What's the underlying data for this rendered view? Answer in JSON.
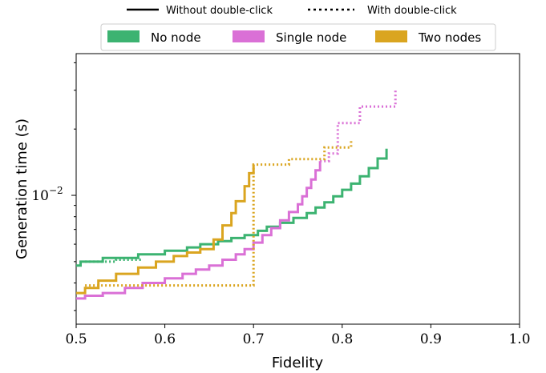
{
  "chart_data": {
    "type": "line",
    "title": "",
    "xlabel": "Fidelity",
    "ylabel": "Generation time (s)",
    "xlim": [
      0.5,
      1.0
    ],
    "ylim": [
      0.0026,
      0.044
    ],
    "yscale": "log",
    "xticks": [
      "0.5",
      "0.6",
      "0.7",
      "0.8",
      "0.9",
      "1.0"
    ],
    "yticks": [
      {
        "value": 0.01,
        "label": "10",
        "exp": "−2"
      }
    ],
    "grid": false,
    "style_legend": {
      "solid": "Without double-click",
      "dotted": "With double-click"
    },
    "legend_placement": "top-center",
    "colors": {
      "no_node": "#3cb371",
      "single_node": "#da70d6",
      "two_nodes": "#daa520"
    },
    "series": [
      {
        "name": "No node",
        "key": "no_node",
        "style": "solid",
        "x": [
          0.5,
          0.505,
          0.53,
          0.57,
          0.6,
          0.625,
          0.64,
          0.66,
          0.675,
          0.69,
          0.705,
          0.715,
          0.73,
          0.745,
          0.76,
          0.77,
          0.78,
          0.79,
          0.8,
          0.81,
          0.82,
          0.83,
          0.84,
          0.85
        ],
        "y": [
          0.0048,
          0.005,
          0.0052,
          0.0054,
          0.0056,
          0.0058,
          0.006,
          0.0062,
          0.0064,
          0.0066,
          0.0069,
          0.0072,
          0.0075,
          0.0079,
          0.0083,
          0.0088,
          0.0093,
          0.0099,
          0.0106,
          0.0113,
          0.0122,
          0.0133,
          0.0147,
          0.0163
        ]
      },
      {
        "name": "Single node",
        "key": "single_node",
        "style": "solid",
        "x": [
          0.5,
          0.51,
          0.53,
          0.555,
          0.575,
          0.6,
          0.62,
          0.635,
          0.65,
          0.665,
          0.68,
          0.69,
          0.7,
          0.71,
          0.72,
          0.73,
          0.74,
          0.75,
          0.755,
          0.76,
          0.765,
          0.77,
          0.775
        ],
        "y": [
          0.0034,
          0.0035,
          0.0036,
          0.0038,
          0.004,
          0.0042,
          0.0044,
          0.0046,
          0.0048,
          0.0051,
          0.0054,
          0.0057,
          0.0061,
          0.0066,
          0.0071,
          0.0077,
          0.0084,
          0.0091,
          0.0099,
          0.0108,
          0.0118,
          0.013,
          0.0143
        ]
      },
      {
        "name": "Two nodes",
        "key": "two_nodes",
        "style": "solid",
        "x": [
          0.5,
          0.51,
          0.525,
          0.545,
          0.57,
          0.59,
          0.61,
          0.625,
          0.64,
          0.655,
          0.665,
          0.675,
          0.68,
          0.69,
          0.695,
          0.7
        ],
        "y": [
          0.0036,
          0.0038,
          0.0041,
          0.0044,
          0.0047,
          0.005,
          0.0053,
          0.0055,
          0.0057,
          0.0063,
          0.0073,
          0.0083,
          0.0094,
          0.011,
          0.0126,
          0.0138
        ]
      },
      {
        "name": "No node",
        "key": "no_node",
        "style": "dotted",
        "x": [
          0.51,
          0.52,
          0.545,
          0.57,
          0.575
        ],
        "y": [
          0.005,
          0.005,
          0.0051,
          0.0051,
          0.0051
        ]
      },
      {
        "name": "Single node",
        "key": "single_node",
        "style": "dotted",
        "x": [
          0.775,
          0.785,
          0.795,
          0.82,
          0.86
        ],
        "y": [
          0.0143,
          0.0155,
          0.0213,
          0.0253,
          0.0299
        ]
      },
      {
        "name": "Two nodes",
        "key": "two_nodes",
        "style": "dotted",
        "x": [
          0.51,
          0.515,
          0.7,
          0.715,
          0.74,
          0.77,
          0.78,
          0.8,
          0.81
        ],
        "y": [
          0.0039,
          0.0039,
          0.0138,
          0.0138,
          0.0146,
          0.0146,
          0.0165,
          0.0165,
          0.018
        ]
      }
    ]
  }
}
